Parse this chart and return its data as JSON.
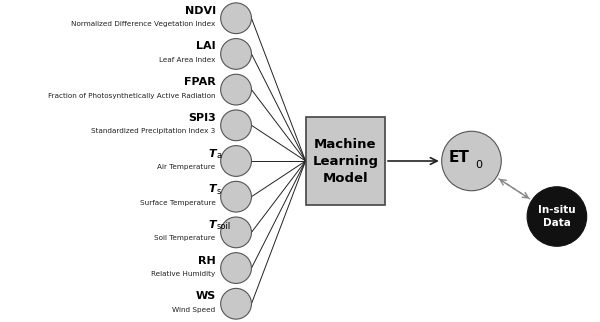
{
  "bg_color": "#ffffff",
  "input_nodes": [
    {
      "label_bold": "NDVI",
      "label_sub": "Normalized Difference Vegetation Index",
      "suffix": ""
    },
    {
      "label_bold": "LAI",
      "label_sub": "Leaf Area Index",
      "suffix": ""
    },
    {
      "label_bold": "FPAR",
      "label_sub": "Fraction of Photosynthetically Active Radiation",
      "suffix": ""
    },
    {
      "label_bold": "SPI3",
      "label_sub": "Standardized Precipitation Index 3",
      "suffix": ""
    },
    {
      "label_bold": "T",
      "label_sub": "Air Temperature",
      "suffix": "a"
    },
    {
      "label_bold": "T",
      "label_sub": "Surface Temperature",
      "suffix": "s"
    },
    {
      "label_bold": "T",
      "label_sub": "Soil Temperature",
      "suffix": "soil"
    },
    {
      "label_bold": "RH",
      "label_sub": "Relative Humidity",
      "suffix": ""
    },
    {
      "label_bold": "WS",
      "label_sub": "Wind Speed",
      "suffix": ""
    }
  ],
  "node_circle_color": "#c8c8c8",
  "ml_box_color": "#c8c8c8",
  "ml_box_text": "Machine\nLearning\nModel",
  "et_circle_color": "#c8c8c8",
  "insitu_circle_color": "#111111",
  "insitu_label": "In-situ\nData",
  "insitu_text_color": "#ffffff",
  "arrow_color": "#222222",
  "dashed_arrow_color": "#888888"
}
